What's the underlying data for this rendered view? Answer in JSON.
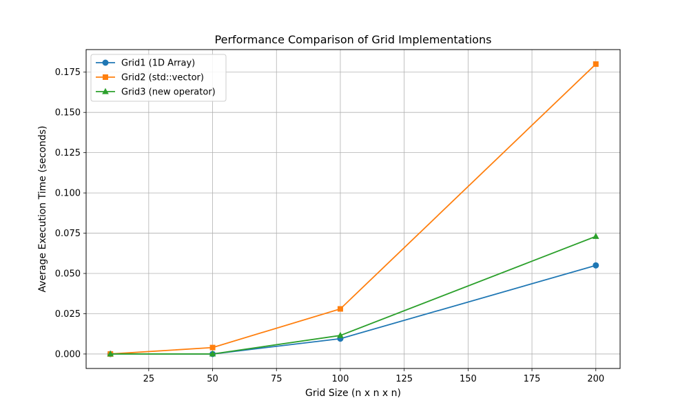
{
  "chart_data": {
    "type": "line",
    "title": "Performance Comparison of Grid Implementations",
    "xlabel": "Grid Size (n x n x n)",
    "ylabel": "Average Execution Time (seconds)",
    "xlim": [
      0.5,
      209.5
    ],
    "ylim": [
      -0.009,
      0.189
    ],
    "x": [
      10,
      50,
      100,
      200
    ],
    "xticks": [
      25,
      50,
      75,
      100,
      125,
      150,
      175,
      200
    ],
    "xtick_labels": [
      "25",
      "50",
      "75",
      "100",
      "125",
      "150",
      "175",
      "200"
    ],
    "yticks": [
      0,
      0.025,
      0.05,
      0.075,
      0.1,
      0.125,
      0.15,
      0.175
    ],
    "ytick_labels": [
      "0.000",
      "0.025",
      "0.050",
      "0.075",
      "0.100",
      "0.125",
      "0.150",
      "0.175"
    ],
    "grid": true,
    "legend_position": "top-left",
    "series": [
      {
        "name": "Grid1 (1D Array)",
        "values": [
          0.0,
          0.0,
          0.0095,
          0.055
        ],
        "color": "#1f77b4",
        "marker": "circle"
      },
      {
        "name": "Grid2 (std::vector)",
        "values": [
          0.0,
          0.004,
          0.028,
          0.18
        ],
        "color": "#ff7f0e",
        "marker": "square"
      },
      {
        "name": "Grid3 (new operator)",
        "values": [
          0.0,
          0.0,
          0.0115,
          0.073
        ],
        "color": "#2ca02c",
        "marker": "triangle"
      }
    ]
  }
}
